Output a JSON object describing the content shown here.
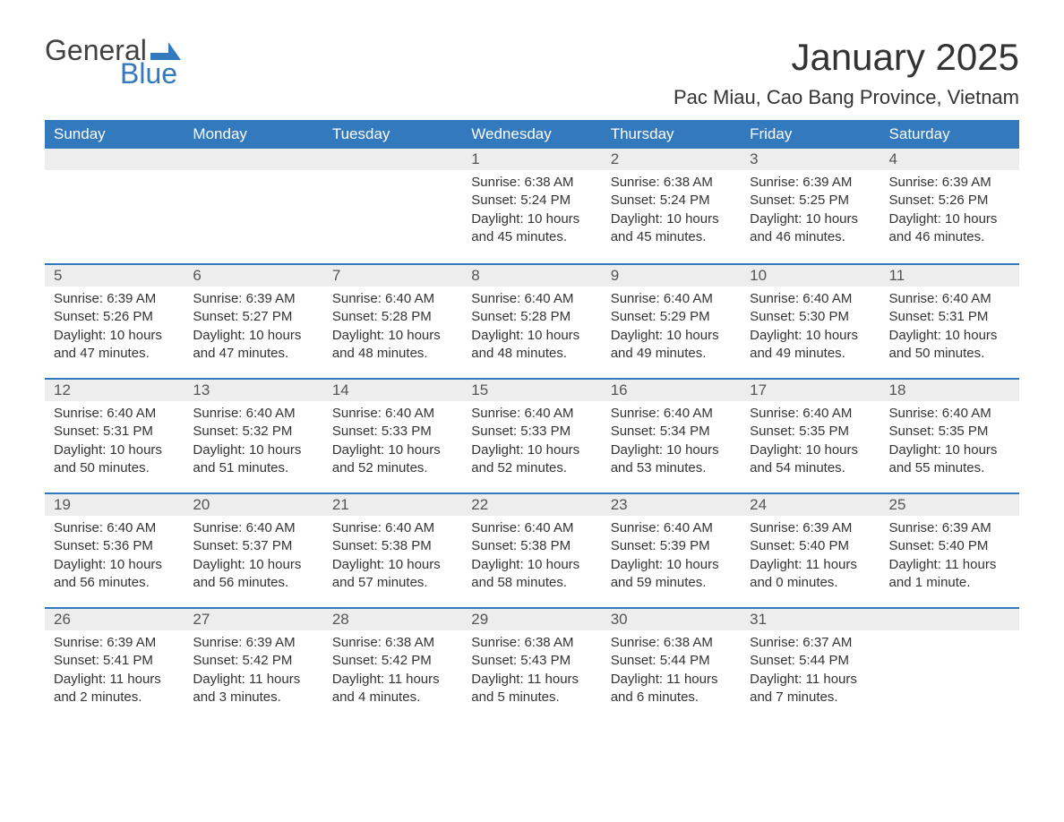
{
  "logo": {
    "word1": "General",
    "word2": "Blue"
  },
  "title": "January 2025",
  "location": "Pac Miau, Cao Bang Province, Vietnam",
  "colors": {
    "header_bg": "#3279bd",
    "header_text": "#ffffff",
    "daynum_bg": "#ededed",
    "border": "#3279bd",
    "text": "#333333",
    "logo_gray": "#414141",
    "logo_blue": "#3279bd"
  },
  "day_headers": [
    "Sunday",
    "Monday",
    "Tuesday",
    "Wednesday",
    "Thursday",
    "Friday",
    "Saturday"
  ],
  "weeks": [
    [
      {
        "n": "",
        "sr": "",
        "ss": "",
        "dl": ""
      },
      {
        "n": "",
        "sr": "",
        "ss": "",
        "dl": ""
      },
      {
        "n": "",
        "sr": "",
        "ss": "",
        "dl": ""
      },
      {
        "n": "1",
        "sr": "Sunrise: 6:38 AM",
        "ss": "Sunset: 5:24 PM",
        "dl": "Daylight: 10 hours and 45 minutes."
      },
      {
        "n": "2",
        "sr": "Sunrise: 6:38 AM",
        "ss": "Sunset: 5:24 PM",
        "dl": "Daylight: 10 hours and 45 minutes."
      },
      {
        "n": "3",
        "sr": "Sunrise: 6:39 AM",
        "ss": "Sunset: 5:25 PM",
        "dl": "Daylight: 10 hours and 46 minutes."
      },
      {
        "n": "4",
        "sr": "Sunrise: 6:39 AM",
        "ss": "Sunset: 5:26 PM",
        "dl": "Daylight: 10 hours and 46 minutes."
      }
    ],
    [
      {
        "n": "5",
        "sr": "Sunrise: 6:39 AM",
        "ss": "Sunset: 5:26 PM",
        "dl": "Daylight: 10 hours and 47 minutes."
      },
      {
        "n": "6",
        "sr": "Sunrise: 6:39 AM",
        "ss": "Sunset: 5:27 PM",
        "dl": "Daylight: 10 hours and 47 minutes."
      },
      {
        "n": "7",
        "sr": "Sunrise: 6:40 AM",
        "ss": "Sunset: 5:28 PM",
        "dl": "Daylight: 10 hours and 48 minutes."
      },
      {
        "n": "8",
        "sr": "Sunrise: 6:40 AM",
        "ss": "Sunset: 5:28 PM",
        "dl": "Daylight: 10 hours and 48 minutes."
      },
      {
        "n": "9",
        "sr": "Sunrise: 6:40 AM",
        "ss": "Sunset: 5:29 PM",
        "dl": "Daylight: 10 hours and 49 minutes."
      },
      {
        "n": "10",
        "sr": "Sunrise: 6:40 AM",
        "ss": "Sunset: 5:30 PM",
        "dl": "Daylight: 10 hours and 49 minutes."
      },
      {
        "n": "11",
        "sr": "Sunrise: 6:40 AM",
        "ss": "Sunset: 5:31 PM",
        "dl": "Daylight: 10 hours and 50 minutes."
      }
    ],
    [
      {
        "n": "12",
        "sr": "Sunrise: 6:40 AM",
        "ss": "Sunset: 5:31 PM",
        "dl": "Daylight: 10 hours and 50 minutes."
      },
      {
        "n": "13",
        "sr": "Sunrise: 6:40 AM",
        "ss": "Sunset: 5:32 PM",
        "dl": "Daylight: 10 hours and 51 minutes."
      },
      {
        "n": "14",
        "sr": "Sunrise: 6:40 AM",
        "ss": "Sunset: 5:33 PM",
        "dl": "Daylight: 10 hours and 52 minutes."
      },
      {
        "n": "15",
        "sr": "Sunrise: 6:40 AM",
        "ss": "Sunset: 5:33 PM",
        "dl": "Daylight: 10 hours and 52 minutes."
      },
      {
        "n": "16",
        "sr": "Sunrise: 6:40 AM",
        "ss": "Sunset: 5:34 PM",
        "dl": "Daylight: 10 hours and 53 minutes."
      },
      {
        "n": "17",
        "sr": "Sunrise: 6:40 AM",
        "ss": "Sunset: 5:35 PM",
        "dl": "Daylight: 10 hours and 54 minutes."
      },
      {
        "n": "18",
        "sr": "Sunrise: 6:40 AM",
        "ss": "Sunset: 5:35 PM",
        "dl": "Daylight: 10 hours and 55 minutes."
      }
    ],
    [
      {
        "n": "19",
        "sr": "Sunrise: 6:40 AM",
        "ss": "Sunset: 5:36 PM",
        "dl": "Daylight: 10 hours and 56 minutes."
      },
      {
        "n": "20",
        "sr": "Sunrise: 6:40 AM",
        "ss": "Sunset: 5:37 PM",
        "dl": "Daylight: 10 hours and 56 minutes."
      },
      {
        "n": "21",
        "sr": "Sunrise: 6:40 AM",
        "ss": "Sunset: 5:38 PM",
        "dl": "Daylight: 10 hours and 57 minutes."
      },
      {
        "n": "22",
        "sr": "Sunrise: 6:40 AM",
        "ss": "Sunset: 5:38 PM",
        "dl": "Daylight: 10 hours and 58 minutes."
      },
      {
        "n": "23",
        "sr": "Sunrise: 6:40 AM",
        "ss": "Sunset: 5:39 PM",
        "dl": "Daylight: 10 hours and 59 minutes."
      },
      {
        "n": "24",
        "sr": "Sunrise: 6:39 AM",
        "ss": "Sunset: 5:40 PM",
        "dl": "Daylight: 11 hours and 0 minutes."
      },
      {
        "n": "25",
        "sr": "Sunrise: 6:39 AM",
        "ss": "Sunset: 5:40 PM",
        "dl": "Daylight: 11 hours and 1 minute."
      }
    ],
    [
      {
        "n": "26",
        "sr": "Sunrise: 6:39 AM",
        "ss": "Sunset: 5:41 PM",
        "dl": "Daylight: 11 hours and 2 minutes."
      },
      {
        "n": "27",
        "sr": "Sunrise: 6:39 AM",
        "ss": "Sunset: 5:42 PM",
        "dl": "Daylight: 11 hours and 3 minutes."
      },
      {
        "n": "28",
        "sr": "Sunrise: 6:38 AM",
        "ss": "Sunset: 5:42 PM",
        "dl": "Daylight: 11 hours and 4 minutes."
      },
      {
        "n": "29",
        "sr": "Sunrise: 6:38 AM",
        "ss": "Sunset: 5:43 PM",
        "dl": "Daylight: 11 hours and 5 minutes."
      },
      {
        "n": "30",
        "sr": "Sunrise: 6:38 AM",
        "ss": "Sunset: 5:44 PM",
        "dl": "Daylight: 11 hours and 6 minutes."
      },
      {
        "n": "31",
        "sr": "Sunrise: 6:37 AM",
        "ss": "Sunset: 5:44 PM",
        "dl": "Daylight: 11 hours and 7 minutes."
      },
      {
        "n": "",
        "sr": "",
        "ss": "",
        "dl": ""
      }
    ]
  ]
}
